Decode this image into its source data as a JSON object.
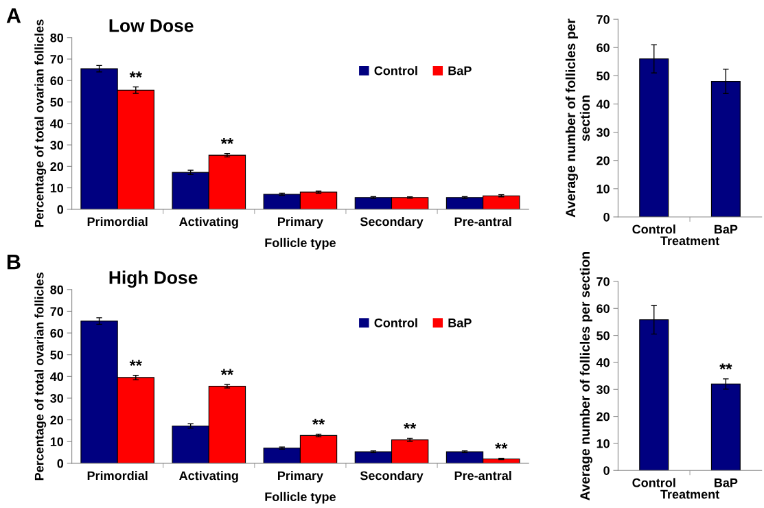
{
  "chart_data": [
    {
      "type": "bar",
      "title": "Low Dose",
      "xlabel": "Follicle type",
      "ylabel": "Percentage of total ovarian follicles",
      "categories": [
        "Primordial",
        "Activating",
        "Primary",
        "Secondary",
        "Pre-antral"
      ],
      "series": [
        {
          "name": "Control",
          "color": "#000080",
          "values": [
            65.5,
            17.2,
            7.0,
            5.5,
            5.5
          ],
          "errors": [
            1.5,
            1.0,
            0.5,
            0.4,
            0.4
          ]
        },
        {
          "name": "BaP",
          "color": "#ff0000",
          "values": [
            55.5,
            25.2,
            8.0,
            5.5,
            6.3
          ],
          "errors": [
            1.5,
            0.8,
            0.5,
            0.3,
            0.5
          ]
        }
      ],
      "ylim": [
        0,
        80
      ],
      "yticks": [
        0,
        10,
        20,
        30,
        40,
        50,
        60,
        70,
        80
      ],
      "grid": false,
      "legend": "top right",
      "annotations": [
        "A",
        {
          "text": "**",
          "x": "Primordial",
          "y": 57
        },
        {
          "text": "**",
          "x": "Activating",
          "y": 26
        }
      ]
    },
    {
      "type": "bar",
      "xlabel": "Treatment",
      "ylabel": "Average number of follicles per section",
      "categories": [
        "Control",
        "BaP"
      ],
      "values": [
        56,
        48
      ],
      "errors": [
        5,
        4.3
      ],
      "color": "#000080",
      "ylim": [
        0,
        70
      ],
      "yticks": [
        0,
        10,
        20,
        30,
        40,
        50,
        60,
        70
      ],
      "grid": false
    },
    {
      "type": "bar",
      "title": "High Dose",
      "xlabel": "Follicle type",
      "ylabel": "Percentage of total ovarian follicles",
      "categories": [
        "Primordial",
        "Activating",
        "Primary",
        "Secondary",
        "Pre-antral"
      ],
      "series": [
        {
          "name": "Control",
          "color": "#000080",
          "values": [
            65.5,
            17.2,
            7.0,
            5.3,
            5.3
          ],
          "errors": [
            1.5,
            1.0,
            0.5,
            0.4,
            0.4
          ]
        },
        {
          "name": "BaP",
          "color": "#ff0000",
          "values": [
            39.5,
            35.5,
            12.8,
            10.8,
            2.0
          ],
          "errors": [
            1.0,
            0.8,
            0.6,
            0.7,
            0.3
          ]
        }
      ],
      "ylim": [
        0,
        80
      ],
      "yticks": [
        0,
        10,
        20,
        30,
        40,
        50,
        60,
        70,
        80
      ],
      "grid": false,
      "legend": "top right",
      "annotations": [
        "B",
        {
          "text": "**",
          "x": "Primordial",
          "y": 40.5
        },
        {
          "text": "**",
          "x": "Activating",
          "y": 36.3
        },
        {
          "text": "**",
          "x": "Primary",
          "y": 13.4
        },
        {
          "text": "**",
          "x": "Secondary",
          "y": 11.5
        },
        {
          "text": "**",
          "x": "Pre-antral",
          "y": 2.3
        }
      ]
    },
    {
      "type": "bar",
      "xlabel": "Treatment",
      "ylabel": "Average number of follicles per section",
      "categories": [
        "Control",
        "BaP"
      ],
      "values": [
        55.8,
        32
      ],
      "errors": [
        5.3,
        1.9
      ],
      "color": "#000080",
      "ylim": [
        0,
        70
      ],
      "yticks": [
        0,
        10,
        20,
        30,
        40,
        50,
        60,
        70
      ],
      "grid": false,
      "annotations": [
        {
          "text": "**",
          "x": "BaP",
          "y": 33.9
        }
      ]
    }
  ]
}
